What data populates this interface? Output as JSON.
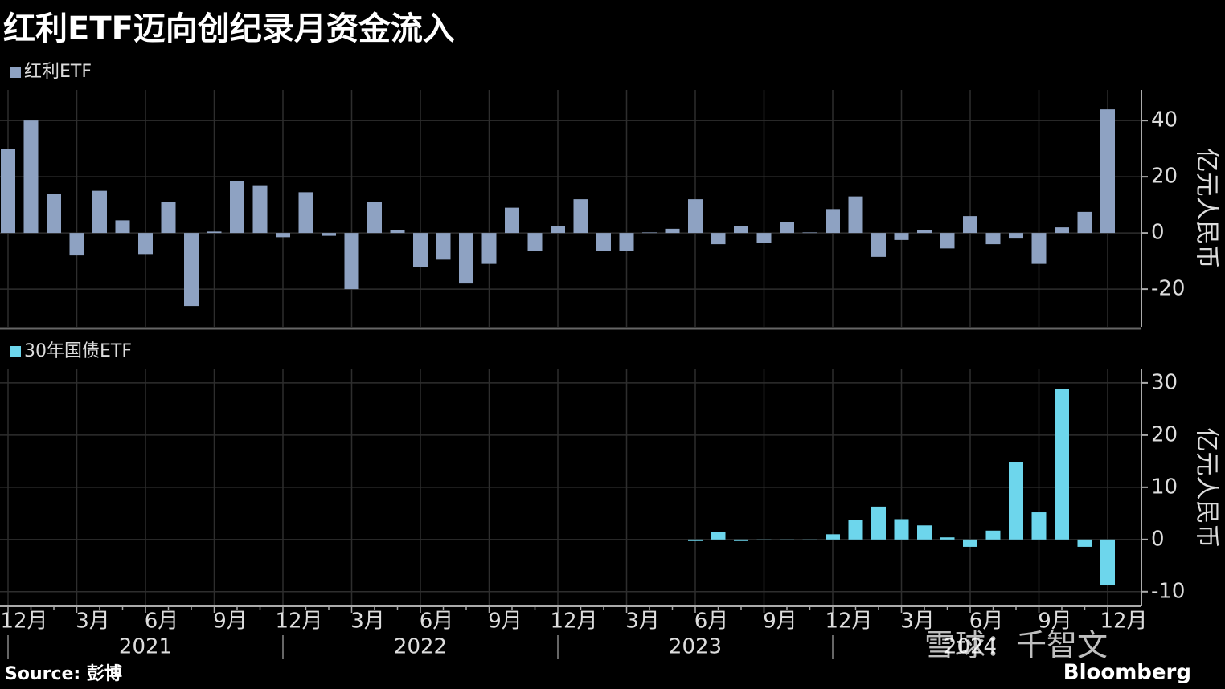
{
  "title": "红利ETF迈向创纪录月资金流入",
  "source": "Source: 彭博",
  "brand": "Bloomberg",
  "watermark": "雪球：千智文",
  "chart_data": [
    {
      "type": "bar",
      "y_label": "亿元人民币",
      "series": [
        {
          "name": "红利ETF",
          "color": "#8ea2c2",
          "values": [
            30,
            40,
            14,
            -8,
            15,
            4.5,
            -7.5,
            11,
            -26,
            0.5,
            18.5,
            17,
            -1.5,
            14.5,
            -1,
            -20,
            11,
            1,
            -12,
            -9.5,
            -18,
            -11,
            9,
            -6.5,
            2.5,
            12,
            -6.5,
            -6.5,
            0.2,
            1.5,
            12,
            -4,
            2.5,
            -3.5,
            4,
            0.2,
            8.5,
            13,
            -8.5,
            -2.5,
            1,
            -5.5,
            6,
            -4,
            -2,
            -11,
            2,
            7.5,
            44
          ]
        }
      ],
      "ylim": [
        -33.4,
        50.9
      ],
      "yticks": [
        40,
        20,
        0,
        -20
      ],
      "grid": true
    },
    {
      "type": "bar",
      "y_label": "亿元人民币",
      "categories": [
        "12月",
        null,
        null,
        "3月",
        null,
        null,
        "6月",
        null,
        null,
        "9月",
        null,
        null,
        "12月",
        null,
        null,
        "3月",
        null,
        null,
        "6月",
        null,
        null,
        "9月",
        null,
        null,
        "12月",
        null,
        null,
        "3月",
        null,
        null,
        "6月",
        null,
        null,
        "9月",
        null,
        null,
        "12月",
        null,
        null,
        "3月",
        null,
        null,
        "6月",
        null,
        null,
        "9月",
        null,
        null,
        "12月"
      ],
      "years": [
        "2021",
        "2022",
        "2023",
        "2024"
      ],
      "series": [
        {
          "name": "30年国债ETF",
          "color": "#6dd6ec",
          "values": [
            null,
            null,
            null,
            null,
            null,
            null,
            null,
            null,
            null,
            null,
            null,
            null,
            null,
            null,
            null,
            null,
            null,
            null,
            null,
            null,
            null,
            null,
            null,
            null,
            null,
            null,
            null,
            null,
            null,
            null,
            -0.3,
            1.5,
            -0.3,
            -0.1,
            -0.1,
            -0.1,
            1,
            3.7,
            6.3,
            3.9,
            2.7,
            0.4,
            -1.4,
            1.7,
            14.9,
            5.2,
            28.8,
            -1.4,
            -8.8
          ]
        }
      ],
      "ylim": [
        -12.8,
        32.6
      ],
      "yticks": [
        30,
        20,
        10,
        0,
        -10
      ],
      "grid": true
    }
  ]
}
